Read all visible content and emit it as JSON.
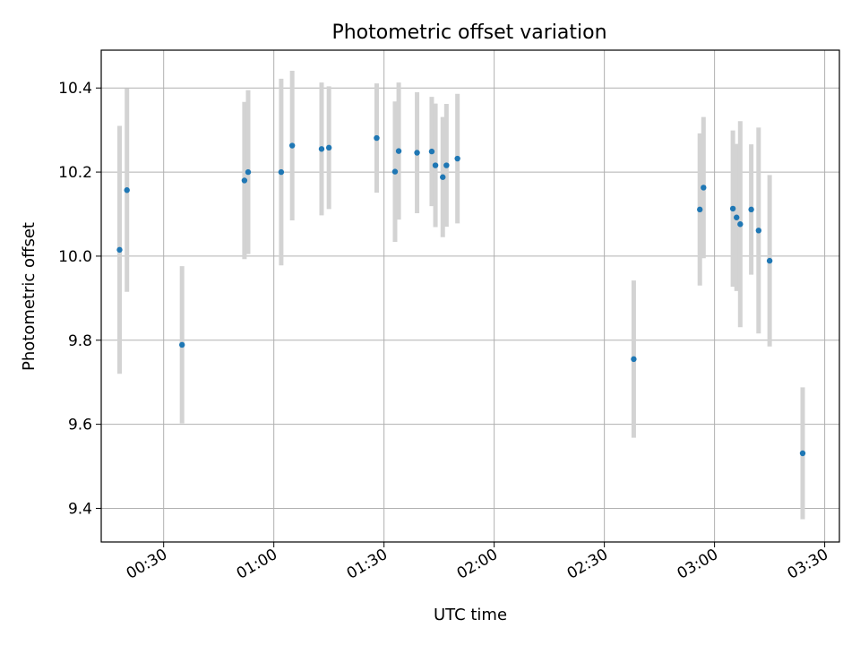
{
  "chart_data": {
    "type": "scatter",
    "title": "Photometric offset variation",
    "xlabel": "UTC time",
    "ylabel": "Photometric offset",
    "xlim": [
      "00:13",
      "03:34"
    ],
    "ylim": [
      9.32,
      10.49
    ],
    "x_ticks": [
      "00:30",
      "01:00",
      "01:30",
      "02:00",
      "02:30",
      "03:00",
      "03:30"
    ],
    "y_ticks": [
      9.4,
      9.6,
      9.8,
      10.0,
      10.2,
      10.4
    ],
    "grid": true,
    "colors": {
      "point": "#1f77b4",
      "errorbar": "#d3d3d3",
      "grid": "#b0b0b0"
    },
    "series": [
      {
        "points": [
          {
            "x": "00:18",
            "y": 10.015,
            "err": 0.295
          },
          {
            "x": "00:20",
            "y": 10.157,
            "err": 0.242
          },
          {
            "x": "00:35",
            "y": 9.789,
            "err": 0.187
          },
          {
            "x": "00:52",
            "y": 10.18,
            "err": 0.187
          },
          {
            "x": "00:53",
            "y": 10.2,
            "err": 0.195
          },
          {
            "x": "01:02",
            "y": 10.2,
            "err": 0.222
          },
          {
            "x": "01:05",
            "y": 10.263,
            "err": 0.178
          },
          {
            "x": "01:13",
            "y": 10.255,
            "err": 0.158
          },
          {
            "x": "01:15",
            "y": 10.258,
            "err": 0.146
          },
          {
            "x": "01:28",
            "y": 10.281,
            "err": 0.13
          },
          {
            "x": "01:33",
            "y": 10.201,
            "err": 0.167
          },
          {
            "x": "01:34",
            "y": 10.25,
            "err": 0.163
          },
          {
            "x": "01:39",
            "y": 10.246,
            "err": 0.144
          },
          {
            "x": "01:43",
            "y": 10.249,
            "err": 0.13
          },
          {
            "x": "01:44",
            "y": 10.216,
            "err": 0.147
          },
          {
            "x": "01:46",
            "y": 10.188,
            "err": 0.143
          },
          {
            "x": "01:47",
            "y": 10.216,
            "err": 0.146
          },
          {
            "x": "01:50",
            "y": 10.232,
            "err": 0.154
          },
          {
            "x": "02:38",
            "y": 9.755,
            "err": 0.187
          },
          {
            "x": "02:56",
            "y": 10.111,
            "err": 0.181
          },
          {
            "x": "02:57",
            "y": 10.163,
            "err": 0.168
          },
          {
            "x": "03:05",
            "y": 10.113,
            "err": 0.186
          },
          {
            "x": "03:06",
            "y": 10.092,
            "err": 0.175
          },
          {
            "x": "03:07",
            "y": 10.076,
            "err": 0.245
          },
          {
            "x": "03:10",
            "y": 10.111,
            "err": 0.155
          },
          {
            "x": "03:12",
            "y": 10.061,
            "err": 0.245
          },
          {
            "x": "03:15",
            "y": 9.989,
            "err": 0.204
          },
          {
            "x": "03:24",
            "y": 9.531,
            "err": 0.157
          }
        ]
      }
    ]
  }
}
